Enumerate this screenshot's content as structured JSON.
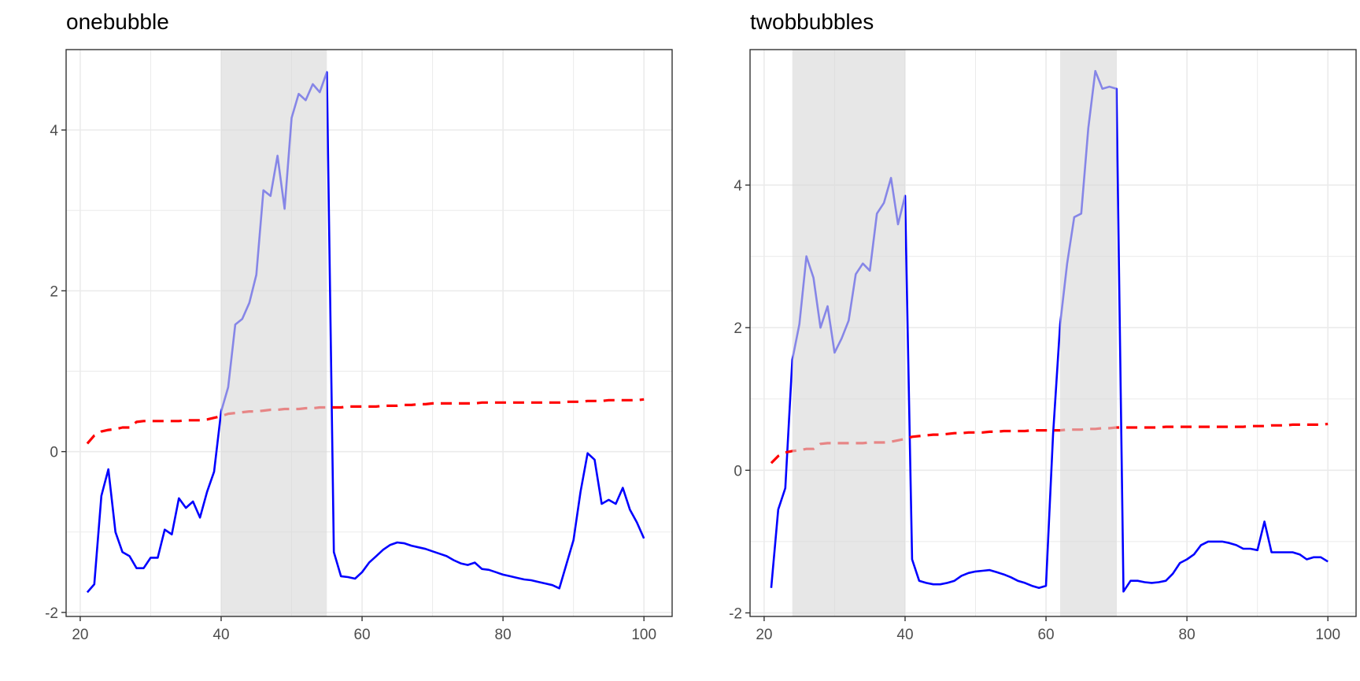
{
  "colors": {
    "bubble_shade": "#d9d9d9",
    "series_line": "#0000ff",
    "critical_line": "#ff0000",
    "grid": "#ebebeb",
    "panel_border": "#333333",
    "tick_text": "#4d4d4d"
  },
  "chart_data": [
    {
      "type": "line",
      "title": "onebubble",
      "xlabel": "",
      "ylabel": "",
      "xlim": [
        18,
        104
      ],
      "ylim": [
        -2.05,
        5.0
      ],
      "x_ticks": [
        20,
        40,
        60,
        80,
        100
      ],
      "y_ticks": [
        -2,
        0,
        2,
        4
      ],
      "x_tick_labels": [
        "20",
        "40",
        "60",
        "80",
        "100"
      ],
      "y_tick_labels": [
        "-2",
        "0",
        "2",
        "4"
      ],
      "grid": true,
      "legend": "none",
      "shaded_regions": [
        [
          40,
          55
        ]
      ],
      "series": [
        {
          "style": "solid",
          "color": "#0000ff",
          "x": [
            21,
            22,
            23,
            24,
            25,
            26,
            27,
            28,
            29,
            30,
            31,
            32,
            33,
            34,
            35,
            36,
            37,
            38,
            39,
            40,
            41,
            42,
            43,
            44,
            45,
            46,
            47,
            48,
            49,
            50,
            51,
            52,
            53,
            54,
            55,
            56,
            57,
            58,
            59,
            60,
            61,
            62,
            63,
            64,
            65,
            66,
            67,
            68,
            69,
            70,
            71,
            72,
            73,
            74,
            75,
            76,
            77,
            78,
            79,
            80,
            81,
            82,
            83,
            84,
            85,
            86,
            87,
            88,
            89,
            90,
            91,
            92,
            93,
            94,
            95,
            96,
            97,
            98,
            99,
            100
          ],
          "y": [
            -1.75,
            -1.65,
            -0.55,
            -0.22,
            -1.0,
            -1.25,
            -1.3,
            -1.45,
            -1.45,
            -1.32,
            -1.32,
            -0.97,
            -1.03,
            -0.58,
            -0.7,
            -0.62,
            -0.82,
            -0.5,
            -0.25,
            0.5,
            0.8,
            1.58,
            1.65,
            1.85,
            2.2,
            3.25,
            3.18,
            3.68,
            3.02,
            4.15,
            4.45,
            4.37,
            4.57,
            4.47,
            4.72,
            -1.25,
            -1.55,
            -1.56,
            -1.58,
            -1.5,
            -1.38,
            -1.3,
            -1.22,
            -1.16,
            -1.13,
            -1.14,
            -1.17,
            -1.19,
            -1.21,
            -1.24,
            -1.27,
            -1.3,
            -1.35,
            -1.39,
            -1.41,
            -1.38,
            -1.46,
            -1.47,
            -1.5,
            -1.53,
            -1.55,
            -1.57,
            -1.59,
            -1.6,
            -1.62,
            -1.64,
            -1.66,
            -1.7,
            -1.4,
            -1.1,
            -0.5,
            -0.02,
            -0.1,
            -0.65,
            -0.6,
            -0.65,
            -0.45,
            -0.72,
            -0.88,
            -1.08
          ]
        },
        {
          "style": "dashed",
          "color": "#ff0000",
          "x": [
            21,
            22,
            23,
            24,
            25,
            26,
            27,
            28,
            29,
            30,
            31,
            32,
            33,
            34,
            35,
            36,
            37,
            38,
            39,
            40,
            41,
            42,
            43,
            44,
            45,
            46,
            47,
            48,
            49,
            50,
            51,
            52,
            53,
            54,
            55,
            56,
            57,
            58,
            59,
            60,
            61,
            62,
            63,
            64,
            65,
            66,
            67,
            68,
            69,
            70,
            71,
            72,
            73,
            74,
            75,
            76,
            77,
            78,
            79,
            80,
            81,
            82,
            83,
            84,
            85,
            86,
            87,
            88,
            89,
            90,
            91,
            92,
            93,
            94,
            95,
            96,
            97,
            98,
            99,
            100
          ],
          "y": [
            0.1,
            0.2,
            0.25,
            0.27,
            0.28,
            0.3,
            0.3,
            0.37,
            0.38,
            0.38,
            0.38,
            0.38,
            0.38,
            0.38,
            0.39,
            0.39,
            0.39,
            0.4,
            0.42,
            0.44,
            0.47,
            0.48,
            0.49,
            0.5,
            0.5,
            0.51,
            0.52,
            0.52,
            0.53,
            0.53,
            0.53,
            0.54,
            0.54,
            0.55,
            0.55,
            0.55,
            0.55,
            0.56,
            0.56,
            0.56,
            0.56,
            0.56,
            0.57,
            0.57,
            0.57,
            0.58,
            0.58,
            0.59,
            0.59,
            0.6,
            0.6,
            0.6,
            0.6,
            0.6,
            0.6,
            0.6,
            0.61,
            0.61,
            0.61,
            0.61,
            0.61,
            0.61,
            0.61,
            0.61,
            0.61,
            0.61,
            0.61,
            0.61,
            0.62,
            0.62,
            0.62,
            0.63,
            0.63,
            0.63,
            0.64,
            0.64,
            0.64,
            0.64,
            0.64,
            0.65
          ]
        }
      ]
    },
    {
      "type": "line",
      "title": "twobbubbles",
      "xlabel": "",
      "ylabel": "",
      "xlim": [
        18,
        104
      ],
      "ylim": [
        -2.05,
        5.9
      ],
      "x_ticks": [
        20,
        40,
        60,
        80,
        100
      ],
      "y_ticks": [
        -2,
        0,
        2,
        4
      ],
      "x_tick_labels": [
        "20",
        "40",
        "60",
        "80",
        "100"
      ],
      "y_tick_labels": [
        "-2",
        "0",
        "2",
        "4"
      ],
      "grid": true,
      "legend": "none",
      "shaded_regions": [
        [
          24,
          40
        ],
        [
          62,
          70
        ]
      ],
      "series": [
        {
          "style": "solid",
          "color": "#0000ff",
          "x": [
            21,
            22,
            23,
            24,
            25,
            26,
            27,
            28,
            29,
            30,
            31,
            32,
            33,
            34,
            35,
            36,
            37,
            38,
            39,
            40,
            41,
            42,
            43,
            44,
            45,
            46,
            47,
            48,
            49,
            50,
            51,
            52,
            53,
            54,
            55,
            56,
            57,
            58,
            59,
            60,
            61,
            62,
            63,
            64,
            65,
            66,
            67,
            68,
            69,
            70,
            71,
            72,
            73,
            74,
            75,
            76,
            77,
            78,
            79,
            80,
            81,
            82,
            83,
            84,
            85,
            86,
            87,
            88,
            89,
            90,
            91,
            92,
            93,
            94,
            95,
            96,
            97,
            98,
            99,
            100
          ],
          "y": [
            -1.65,
            -0.55,
            -0.25,
            1.55,
            2.05,
            3.0,
            2.7,
            2.0,
            2.3,
            1.65,
            1.85,
            2.1,
            2.75,
            2.9,
            2.8,
            3.6,
            3.75,
            4.1,
            3.45,
            3.85,
            -1.25,
            -1.55,
            -1.58,
            -1.6,
            -1.6,
            -1.58,
            -1.55,
            -1.48,
            -1.44,
            -1.42,
            -1.41,
            -1.4,
            -1.43,
            -1.46,
            -1.5,
            -1.55,
            -1.58,
            -1.62,
            -1.65,
            -1.62,
            0.5,
            2.05,
            2.9,
            3.55,
            3.6,
            4.8,
            5.6,
            5.35,
            5.38,
            5.35,
            -1.7,
            -1.55,
            -1.55,
            -1.57,
            -1.58,
            -1.57,
            -1.55,
            -1.45,
            -1.3,
            -1.25,
            -1.18,
            -1.05,
            -1.0,
            -1.0,
            -1.0,
            -1.02,
            -1.05,
            -1.1,
            -1.1,
            -1.12,
            -0.72,
            -1.15,
            -1.15,
            -1.15,
            -1.15,
            -1.18,
            -1.25,
            -1.22,
            -1.22,
            -1.28
          ]
        },
        {
          "style": "dashed",
          "color": "#ff0000",
          "x": [
            21,
            22,
            23,
            24,
            25,
            26,
            27,
            28,
            29,
            30,
            31,
            32,
            33,
            34,
            35,
            36,
            37,
            38,
            39,
            40,
            41,
            42,
            43,
            44,
            45,
            46,
            47,
            48,
            49,
            50,
            51,
            52,
            53,
            54,
            55,
            56,
            57,
            58,
            59,
            60,
            61,
            62,
            63,
            64,
            65,
            66,
            67,
            68,
            69,
            70,
            71,
            72,
            73,
            74,
            75,
            76,
            77,
            78,
            79,
            80,
            81,
            82,
            83,
            84,
            85,
            86,
            87,
            88,
            89,
            90,
            91,
            92,
            93,
            94,
            95,
            96,
            97,
            98,
            99,
            100
          ],
          "y": [
            0.1,
            0.2,
            0.25,
            0.27,
            0.28,
            0.3,
            0.3,
            0.37,
            0.38,
            0.38,
            0.38,
            0.38,
            0.38,
            0.38,
            0.39,
            0.39,
            0.39,
            0.4,
            0.42,
            0.44,
            0.47,
            0.48,
            0.49,
            0.5,
            0.5,
            0.51,
            0.52,
            0.52,
            0.53,
            0.53,
            0.53,
            0.54,
            0.54,
            0.55,
            0.55,
            0.55,
            0.55,
            0.56,
            0.56,
            0.56,
            0.56,
            0.56,
            0.57,
            0.57,
            0.57,
            0.58,
            0.58,
            0.59,
            0.59,
            0.6,
            0.6,
            0.6,
            0.6,
            0.6,
            0.6,
            0.6,
            0.61,
            0.61,
            0.61,
            0.61,
            0.61,
            0.61,
            0.61,
            0.61,
            0.61,
            0.61,
            0.61,
            0.61,
            0.62,
            0.62,
            0.62,
            0.63,
            0.63,
            0.63,
            0.64,
            0.64,
            0.64,
            0.64,
            0.64,
            0.65
          ]
        }
      ]
    }
  ]
}
